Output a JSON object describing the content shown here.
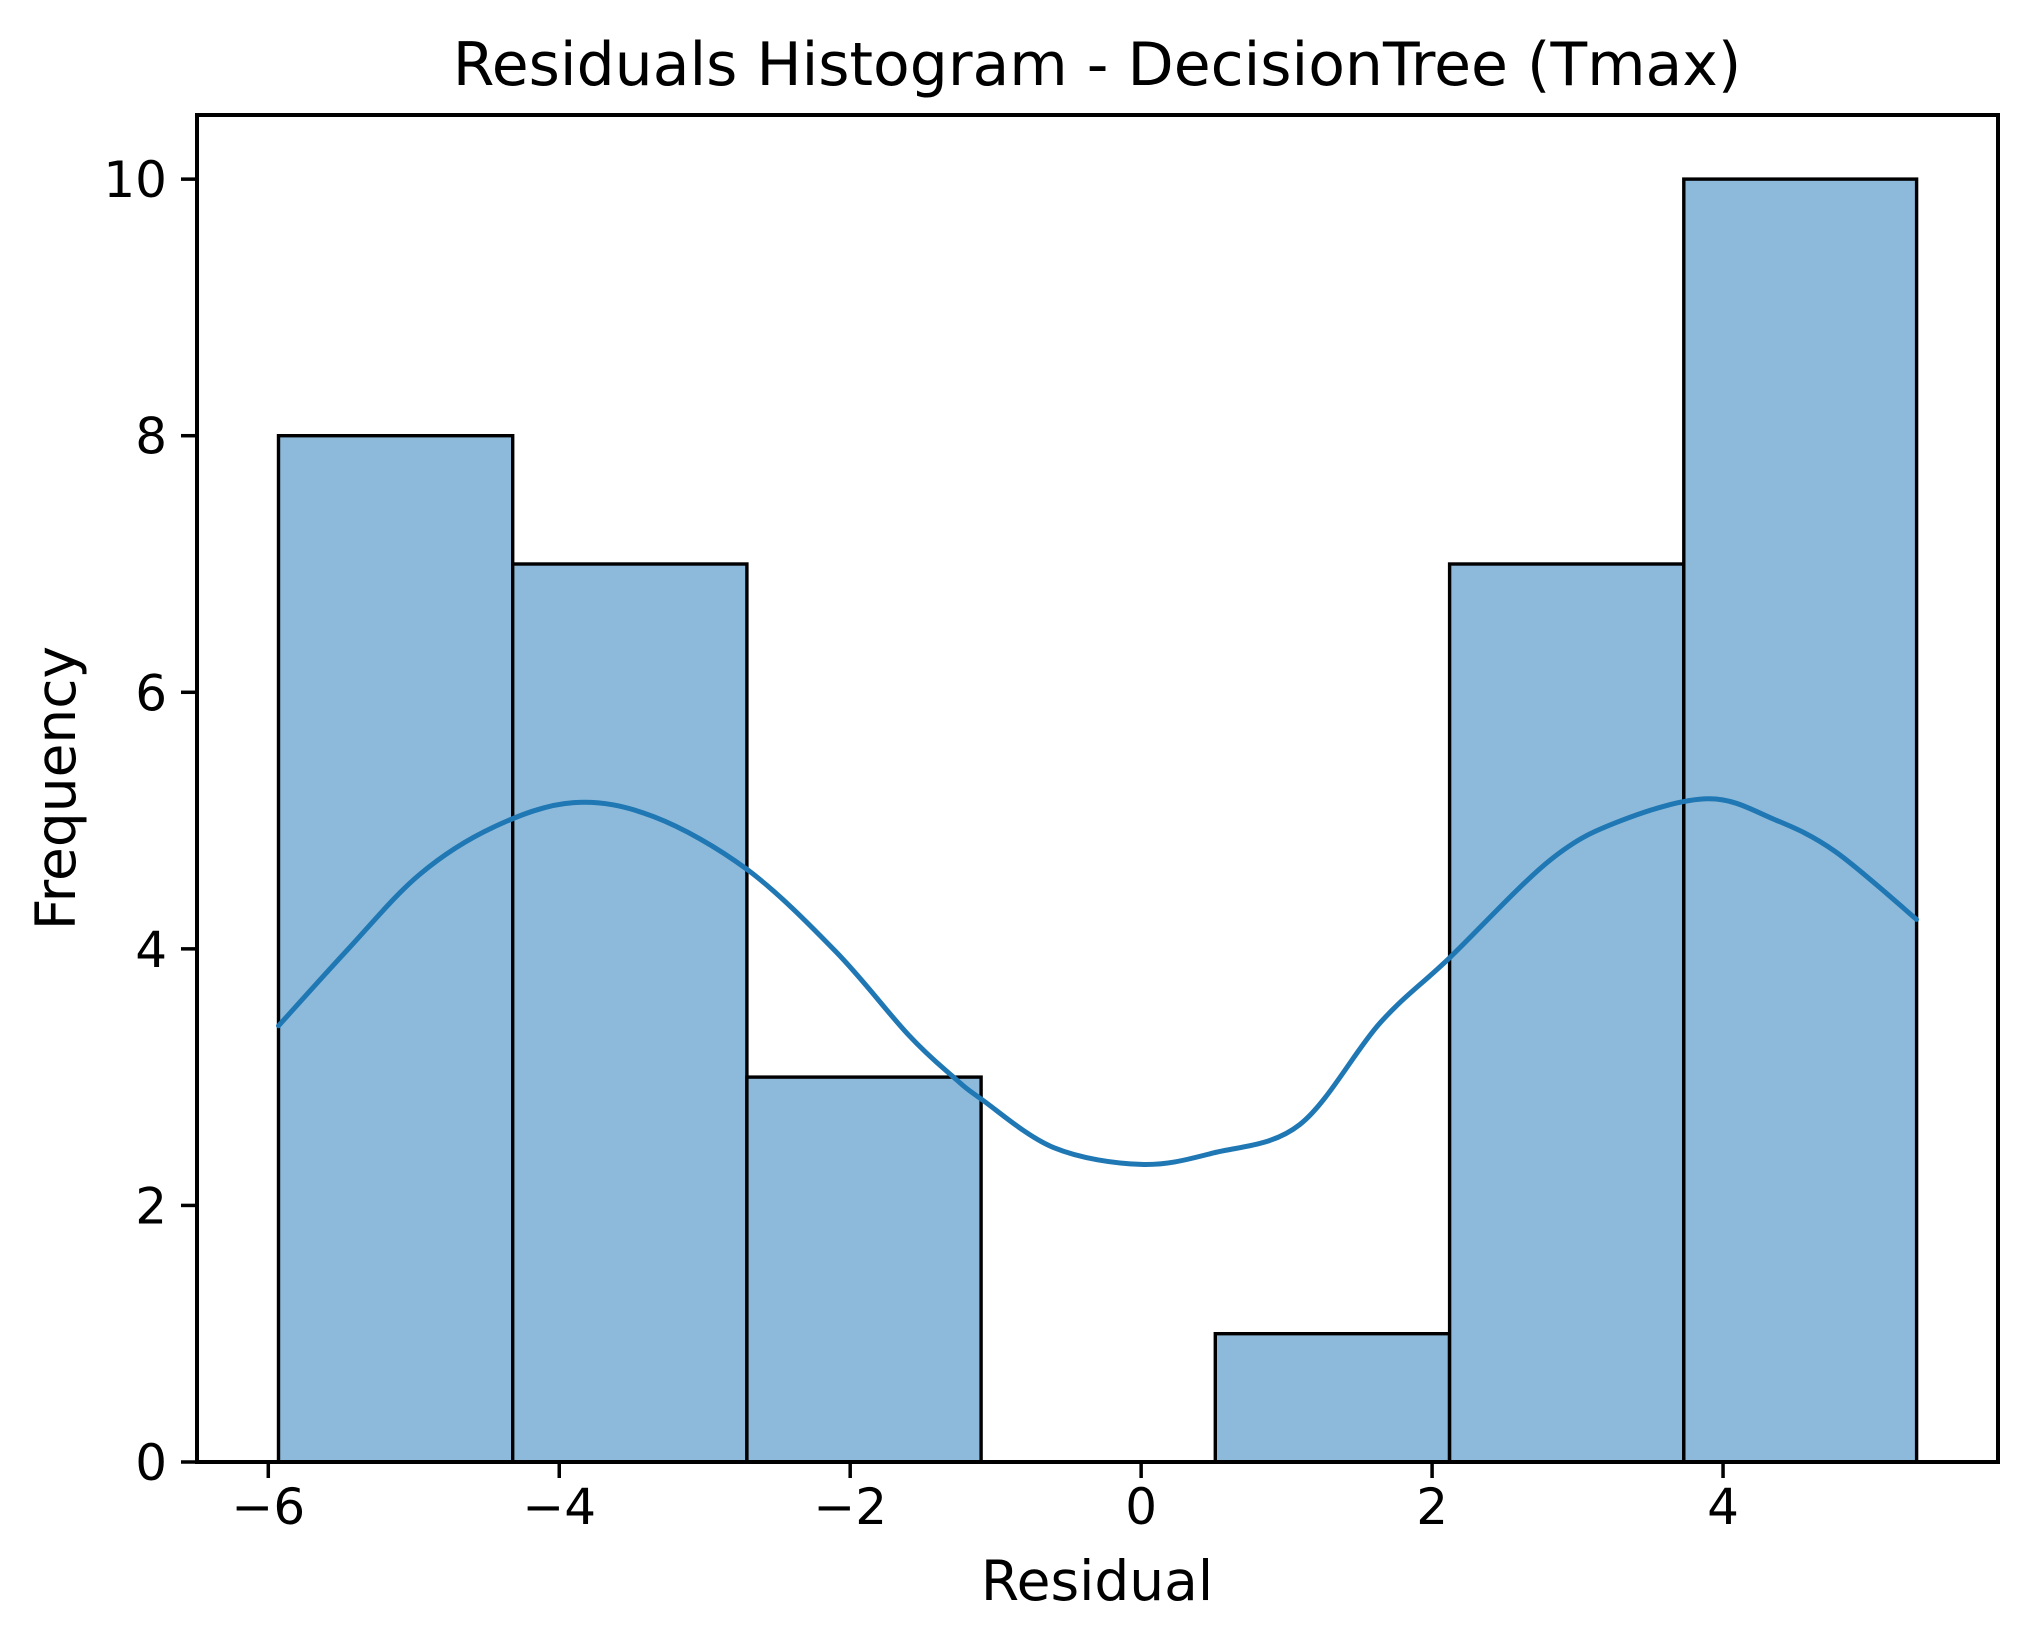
{
  "figure": {
    "background": "#ffffff"
  },
  "chart_data": {
    "type": "bar",
    "subtype": "histogram_with_kde",
    "title": "Residuals Histogram - DecisionTree (Tmax)",
    "xlabel": "Residual",
    "ylabel": "Frequency",
    "xlim": [
      -6.49,
      5.89
    ],
    "ylim": [
      0,
      10.5
    ],
    "grid": false,
    "legend": "none",
    "x_ticks": {
      "values": [
        -6,
        -4,
        -2,
        0,
        2,
        4
      ],
      "labels": [
        "−6",
        "−4",
        "−2",
        "0",
        "2",
        "4"
      ]
    },
    "y_ticks": {
      "values": [
        0,
        2,
        4,
        6,
        8,
        10
      ],
      "labels": [
        "0",
        "2",
        "4",
        "6",
        "8",
        "10"
      ]
    },
    "histogram": {
      "bin_edges": [
        -5.93,
        -4.32,
        -2.71,
        -1.1,
        0.51,
        2.12,
        3.73,
        5.33
      ],
      "counts": [
        8,
        7,
        3,
        0,
        1,
        7,
        10
      ],
      "total_samples": 36
    },
    "kde_curve": {
      "points": [
        [
          -5.93,
          3.4
        ],
        [
          -5.45,
          4.0
        ],
        [
          -4.96,
          4.58
        ],
        [
          -4.45,
          4.95
        ],
        [
          -3.9,
          5.14
        ],
        [
          -3.35,
          5.03
        ],
        [
          -2.71,
          4.62
        ],
        [
          -2.1,
          3.98
        ],
        [
          -1.6,
          3.33
        ],
        [
          -1.29,
          3.0
        ],
        [
          -1.1,
          2.83
        ],
        [
          -0.6,
          2.45
        ],
        [
          0.0,
          2.32
        ],
        [
          0.5,
          2.41
        ],
        [
          1.09,
          2.63
        ],
        [
          1.64,
          3.42
        ],
        [
          2.12,
          3.93
        ],
        [
          2.81,
          4.69
        ],
        [
          3.3,
          5.0
        ],
        [
          3.9,
          5.17
        ],
        [
          4.35,
          5.01
        ],
        [
          4.77,
          4.76
        ],
        [
          5.33,
          4.23
        ]
      ]
    },
    "colors": {
      "bar_fill": "#8dbada",
      "bar_edge": "#000000",
      "kde_line": "#1f77b4",
      "axis": "#000000",
      "text": "#000000"
    }
  }
}
